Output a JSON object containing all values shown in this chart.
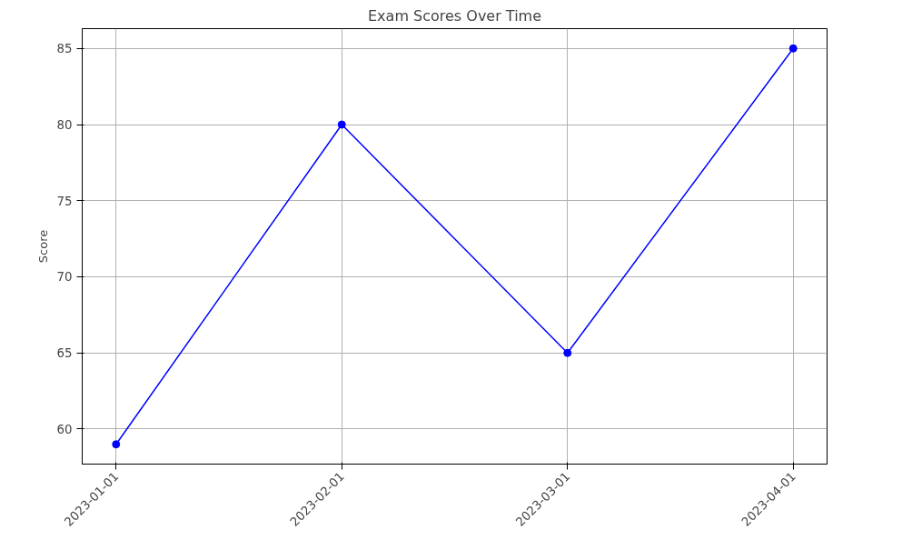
{
  "chart_data": {
    "type": "line",
    "title": "Exam Scores Over Time",
    "ylabel": "Score",
    "categories": [
      "2023-01-01",
      "2023-02-01",
      "2023-03-01",
      "2023-04-01"
    ],
    "series": [
      {
        "color": "#0000ff",
        "values": [
          59,
          80,
          65,
          85
        ]
      }
    ],
    "ylim": [
      57.7,
      86.3
    ],
    "yticks": [
      60,
      65,
      70,
      75,
      80,
      85
    ],
    "grid": true,
    "marker": "circle",
    "line_style": "solid"
  }
}
